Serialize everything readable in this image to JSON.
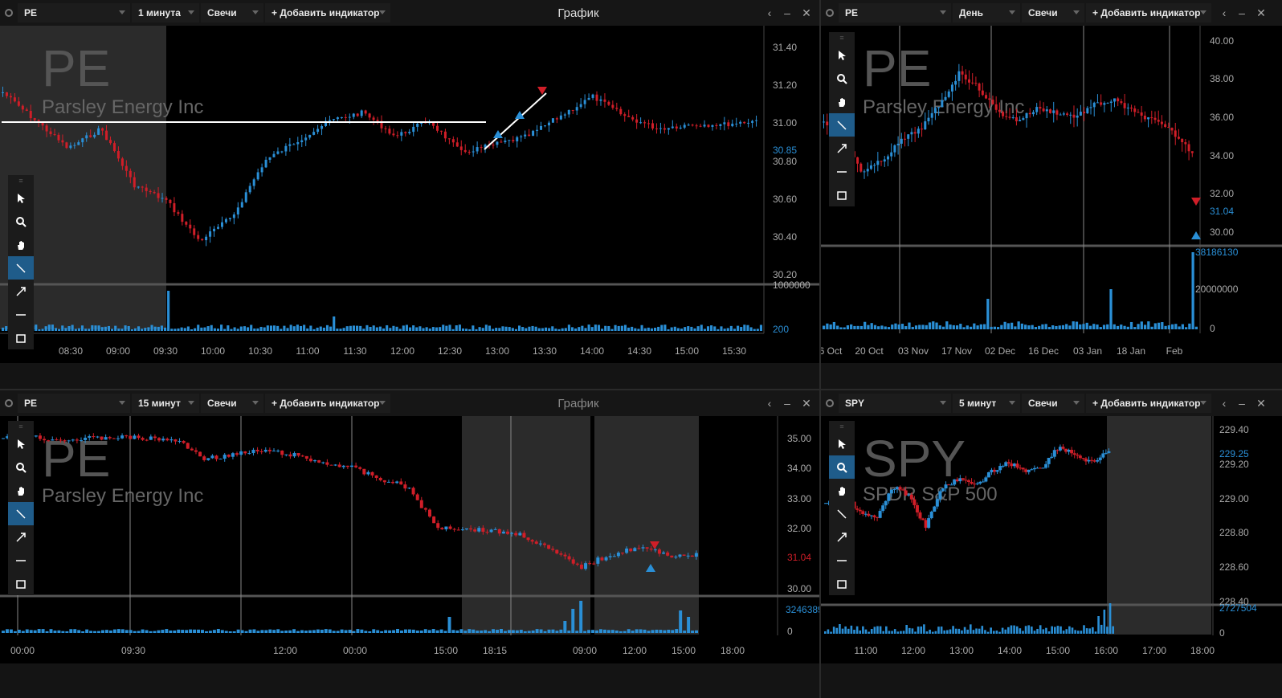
{
  "colors": {
    "up": "#2a8fd6",
    "down": "#d01e28",
    "bg": "#000000",
    "panel": "#161616",
    "active_tool": "#1f5c8a"
  },
  "panels": [
    {
      "symbol": "PE",
      "interval": "1 минута",
      "chart_type": "Свечи",
      "add_indicator": "+ Добавить индикатор",
      "title": "График",
      "watermark": "PE",
      "company": "Parsley Energy Inc",
      "price_axis": [
        "31.40",
        "31.20",
        "31.00",
        "30.85",
        "30.80",
        "30.60",
        "30.40",
        "30.20"
      ],
      "volume_axis": [
        "1000000",
        "200"
      ],
      "time_axis": [
        "08:30",
        "09:00",
        "09:30",
        "10:00",
        "10:30",
        "11:00",
        "11:30",
        "12:00",
        "12:30",
        "13:00",
        "13:30",
        "14:00",
        "14:30",
        "15:00",
        "15:30"
      ]
    },
    {
      "symbol": "PE",
      "interval": "День",
      "chart_type": "Свечи",
      "add_indicator": "+ Добавить индикатор",
      "watermark": "PE",
      "company": "Parsley Energy Inc",
      "price_axis": [
        "40.00",
        "38.00",
        "36.00",
        "34.00",
        "32.00",
        "31.04",
        "30.00"
      ],
      "volume_axis": [
        "38186130",
        "20000000",
        "0"
      ],
      "time_axis": [
        "6 Oct",
        "20 Oct",
        "03 Nov",
        "17 Nov",
        "02 Dec",
        "16 Dec",
        "03 Jan",
        "18 Jan",
        "Feb"
      ]
    },
    {
      "symbol": "PE",
      "interval": "15 минут",
      "chart_type": "Свечи",
      "add_indicator": "+ Добавить индикатор",
      "title": "График",
      "watermark": "PE",
      "company": "Parsley Energy Inc",
      "price_axis": [
        "35.00",
        "34.00",
        "33.00",
        "32.00",
        "31.04",
        "30.00"
      ],
      "volume_axis": [
        "3246389",
        "0"
      ],
      "time_axis": [
        "00:00",
        "09:30",
        "12:00",
        "00:00",
        "15:00",
        "18:15",
        "09:00",
        "12:00",
        "15:00",
        "18:00"
      ]
    },
    {
      "symbol": "SPY",
      "interval": "5 минут",
      "chart_type": "Свечи",
      "add_indicator": "+ Добавить индикатор",
      "watermark": "SPY",
      "company": "SPDR S&P 500",
      "price_axis": [
        "229.40",
        "229.25",
        "229.20",
        "229.00",
        "228.80",
        "228.60",
        "228.40"
      ],
      "volume_axis": [
        "2727504",
        "0"
      ],
      "time_axis": [
        "11:00",
        "12:00",
        "13:00",
        "14:00",
        "15:00",
        "16:00",
        "17:00",
        "18:00"
      ]
    }
  ],
  "tools": [
    "pointer-icon",
    "zoom-icon",
    "hand-icon",
    "trendline-icon",
    "arrow-icon",
    "hline-icon",
    "rect-icon"
  ]
}
